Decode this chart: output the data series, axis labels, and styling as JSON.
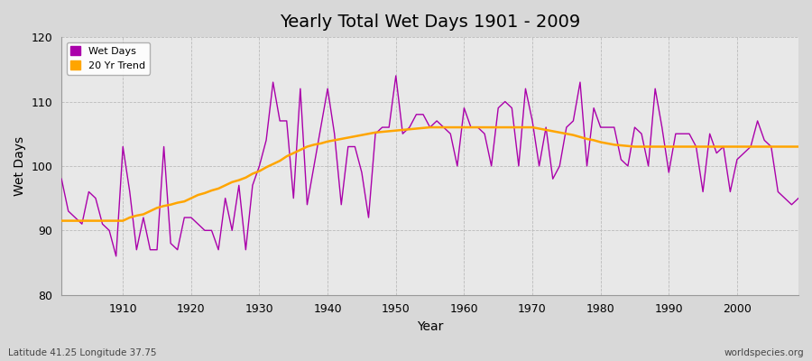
{
  "title": "Yearly Total Wet Days 1901 - 2009",
  "xlabel": "Year",
  "ylabel": "Wet Days",
  "subtitle": "Latitude 41.25 Longitude 37.75",
  "watermark": "worldspecies.org",
  "ylim": [
    80,
    120
  ],
  "xlim": [
    1901,
    2009
  ],
  "yticks": [
    80,
    90,
    100,
    110,
    120
  ],
  "xticks": [
    1910,
    1920,
    1930,
    1940,
    1950,
    1960,
    1970,
    1980,
    1990,
    2000
  ],
  "line_color": "#AA00AA",
  "trend_color": "#FFA500",
  "fig_bg_color": "#D8D8D8",
  "plot_bg_color": "#E8E8E8",
  "legend_wet_days": "Wet Days",
  "legend_trend": "20 Yr Trend",
  "wet_days": {
    "1901": 98,
    "1902": 93,
    "1903": 92,
    "1904": 91,
    "1905": 96,
    "1906": 95,
    "1907": 91,
    "1908": 90,
    "1909": 86,
    "1910": 103,
    "1911": 96,
    "1912": 87,
    "1913": 92,
    "1914": 87,
    "1915": 87,
    "1916": 103,
    "1917": 88,
    "1918": 87,
    "1919": 92,
    "1920": 92,
    "1921": 91,
    "1922": 90,
    "1923": 90,
    "1924": 87,
    "1925": 95,
    "1926": 90,
    "1927": 97,
    "1928": 87,
    "1929": 97,
    "1930": 100,
    "1931": 104,
    "1932": 113,
    "1933": 107,
    "1934": 107,
    "1935": 95,
    "1936": 112,
    "1937": 94,
    "1938": 100,
    "1939": 106,
    "1940": 112,
    "1941": 105,
    "1942": 94,
    "1943": 103,
    "1944": 103,
    "1945": 99,
    "1946": 92,
    "1947": 105,
    "1948": 106,
    "1949": 106,
    "1950": 114,
    "1951": 105,
    "1952": 106,
    "1953": 108,
    "1954": 108,
    "1955": 106,
    "1956": 107,
    "1957": 106,
    "1958": 105,
    "1959": 100,
    "1960": 109,
    "1961": 106,
    "1962": 106,
    "1963": 105,
    "1964": 100,
    "1965": 109,
    "1966": 110,
    "1967": 109,
    "1968": 100,
    "1969": 112,
    "1970": 107,
    "1971": 100,
    "1972": 106,
    "1973": 98,
    "1974": 100,
    "1975": 106,
    "1976": 107,
    "1977": 113,
    "1978": 100,
    "1979": 109,
    "1980": 106,
    "1981": 106,
    "1982": 106,
    "1983": 101,
    "1984": 100,
    "1985": 106,
    "1986": 105,
    "1987": 100,
    "1988": 112,
    "1989": 106,
    "1990": 99,
    "1991": 105,
    "1992": 105,
    "1993": 105,
    "1994": 103,
    "1995": 96,
    "1996": 105,
    "1997": 102,
    "1998": 103,
    "1999": 96,
    "2000": 101,
    "2001": 102,
    "2002": 103,
    "2003": 107,
    "2004": 104,
    "2005": 103,
    "2006": 96,
    "2007": 95,
    "2008": 94,
    "2009": 95
  },
  "trend": {
    "1901": 91.5,
    "1902": 91.5,
    "1903": 91.5,
    "1904": 91.5,
    "1905": 91.5,
    "1906": 91.5,
    "1907": 91.5,
    "1908": 91.5,
    "1909": 91.5,
    "1910": 91.5,
    "1911": 92.0,
    "1912": 92.3,
    "1913": 92.5,
    "1914": 93.0,
    "1915": 93.5,
    "1916": 93.8,
    "1917": 94.0,
    "1918": 94.3,
    "1919": 94.5,
    "1920": 95.0,
    "1921": 95.5,
    "1922": 95.8,
    "1923": 96.2,
    "1924": 96.5,
    "1925": 97.0,
    "1926": 97.5,
    "1927": 97.8,
    "1928": 98.2,
    "1929": 98.8,
    "1930": 99.2,
    "1931": 99.8,
    "1932": 100.3,
    "1933": 100.8,
    "1934": 101.5,
    "1935": 102.0,
    "1936": 102.5,
    "1937": 103.0,
    "1938": 103.3,
    "1939": 103.5,
    "1940": 103.8,
    "1941": 104.0,
    "1942": 104.2,
    "1943": 104.4,
    "1944": 104.6,
    "1945": 104.8,
    "1946": 105.0,
    "1947": 105.2,
    "1948": 105.3,
    "1949": 105.4,
    "1950": 105.5,
    "1951": 105.6,
    "1952": 105.7,
    "1953": 105.8,
    "1954": 105.9,
    "1955": 106.0,
    "1956": 106.0,
    "1957": 106.0,
    "1958": 106.0,
    "1959": 106.0,
    "1960": 106.0,
    "1961": 106.0,
    "1962": 106.0,
    "1963": 106.0,
    "1964": 106.0,
    "1965": 106.0,
    "1966": 106.0,
    "1967": 106.0,
    "1968": 106.0,
    "1969": 106.0,
    "1970": 106.0,
    "1971": 105.8,
    "1972": 105.6,
    "1973": 105.4,
    "1974": 105.2,
    "1975": 105.0,
    "1976": 104.8,
    "1977": 104.5,
    "1978": 104.2,
    "1979": 104.0,
    "1980": 103.7,
    "1981": 103.5,
    "1982": 103.3,
    "1983": 103.2,
    "1984": 103.1,
    "1985": 103.0,
    "1986": 103.0,
    "1987": 103.0,
    "1988": 103.0,
    "1989": 103.0,
    "1990": 103.0,
    "1991": 103.0,
    "1992": 103.0,
    "1993": 103.0,
    "1994": 103.0,
    "1995": 103.0,
    "1996": 103.0,
    "1997": 103.0,
    "1998": 103.0,
    "1999": 103.0,
    "2000": 103.0,
    "2001": 103.0,
    "2002": 103.0,
    "2003": 103.0,
    "2004": 103.0,
    "2005": 103.0,
    "2006": 103.0,
    "2007": 103.0,
    "2008": 103.0,
    "2009": 103.0
  }
}
